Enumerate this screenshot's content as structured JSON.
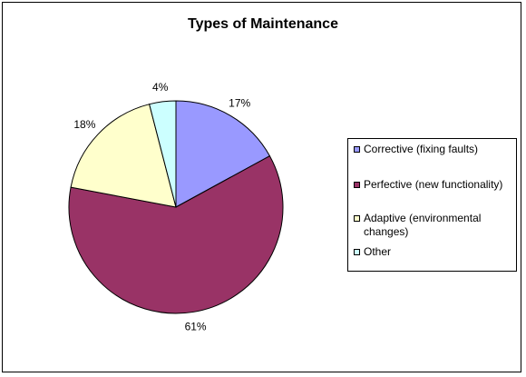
{
  "chart_data": {
    "type": "pie",
    "title": "Types of Maintenance",
    "legend_position": "right",
    "slices": [
      {
        "label": "Corrective (fixing faults)",
        "value": 17,
        "display": "17%",
        "color": "#9999ff"
      },
      {
        "label": "Perfective (new functionality)",
        "value": 61,
        "display": "61%",
        "color": "#993366"
      },
      {
        "label": "Adaptive (environmental changes)",
        "value": 18,
        "display": "18%",
        "color": "#ffffcc"
      },
      {
        "label": "Other",
        "value": 4,
        "display": "4%",
        "color": "#ccffff"
      }
    ]
  }
}
